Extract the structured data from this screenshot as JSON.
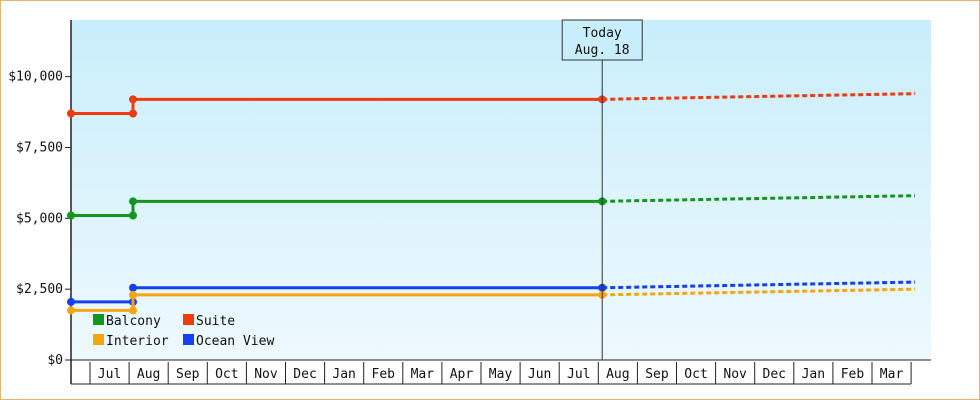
{
  "chart_data": {
    "type": "line",
    "y_axis": {
      "ylim": [
        0,
        12000
      ],
      "ticks": [
        {
          "value": 0,
          "label": "$0"
        },
        {
          "value": 2500,
          "label": "$2,500"
        },
        {
          "value": 5000,
          "label": "$5,000"
        },
        {
          "value": 7500,
          "label": "$7,500"
        },
        {
          "value": 10000,
          "label": "$10,000"
        }
      ]
    },
    "x_axis": {
      "months": [
        "Jul",
        "Aug",
        "Sep",
        "Oct",
        "Nov",
        "Dec",
        "Jan",
        "Feb",
        "Mar",
        "Apr",
        "May",
        "Jun",
        "Jul",
        "Aug",
        "Sep",
        "Oct",
        "Nov",
        "Dec",
        "Jan",
        "Feb",
        "Mar"
      ],
      "start": "2017-06",
      "end": "2019-03"
    },
    "today": {
      "title": "Today",
      "date_label": "Aug. 18",
      "month_index": 13.6
    },
    "grid": false,
    "legend_position": "bottom-left",
    "series": [
      {
        "name": "Suite",
        "color": "#f03a10",
        "history": [
          {
            "x": 0,
            "y": 8700
          },
          {
            "x": 1.6,
            "y": 8700
          },
          {
            "x": 1.6,
            "y": 9200
          },
          {
            "x": 13.6,
            "y": 9200
          }
        ],
        "forecast": [
          {
            "x": 13.6,
            "y": 9200
          },
          {
            "x": 21.6,
            "y": 9400
          }
        ]
      },
      {
        "name": "Balcony",
        "color": "#14961e",
        "history": [
          {
            "x": 0,
            "y": 5100
          },
          {
            "x": 1.6,
            "y": 5100
          },
          {
            "x": 1.6,
            "y": 5600
          },
          {
            "x": 13.6,
            "y": 5600
          }
        ],
        "forecast": [
          {
            "x": 13.6,
            "y": 5600
          },
          {
            "x": 21.6,
            "y": 5800
          }
        ]
      },
      {
        "name": "Ocean View",
        "color": "#1440f0",
        "history": [
          {
            "x": 0,
            "y": 2050
          },
          {
            "x": 1.6,
            "y": 2050
          },
          {
            "x": 1.6,
            "y": 2550
          },
          {
            "x": 13.6,
            "y": 2550
          }
        ],
        "forecast": [
          {
            "x": 13.6,
            "y": 2550
          },
          {
            "x": 21.6,
            "y": 2750
          }
        ]
      },
      {
        "name": "Interior",
        "color": "#f5a510",
        "history": [
          {
            "x": 0,
            "y": 1750
          },
          {
            "x": 1.6,
            "y": 1750
          },
          {
            "x": 1.6,
            "y": 2300
          },
          {
            "x": 13.6,
            "y": 2300
          }
        ],
        "forecast": [
          {
            "x": 13.6,
            "y": 2300
          },
          {
            "x": 21.6,
            "y": 2500
          }
        ]
      }
    ],
    "legend": [
      {
        "name": "Balcony",
        "color": "#14961e"
      },
      {
        "name": "Suite",
        "color": "#f03a10"
      },
      {
        "name": "Interior",
        "color": "#f5a510"
      },
      {
        "name": "Ocean View",
        "color": "#1440f0"
      }
    ]
  }
}
